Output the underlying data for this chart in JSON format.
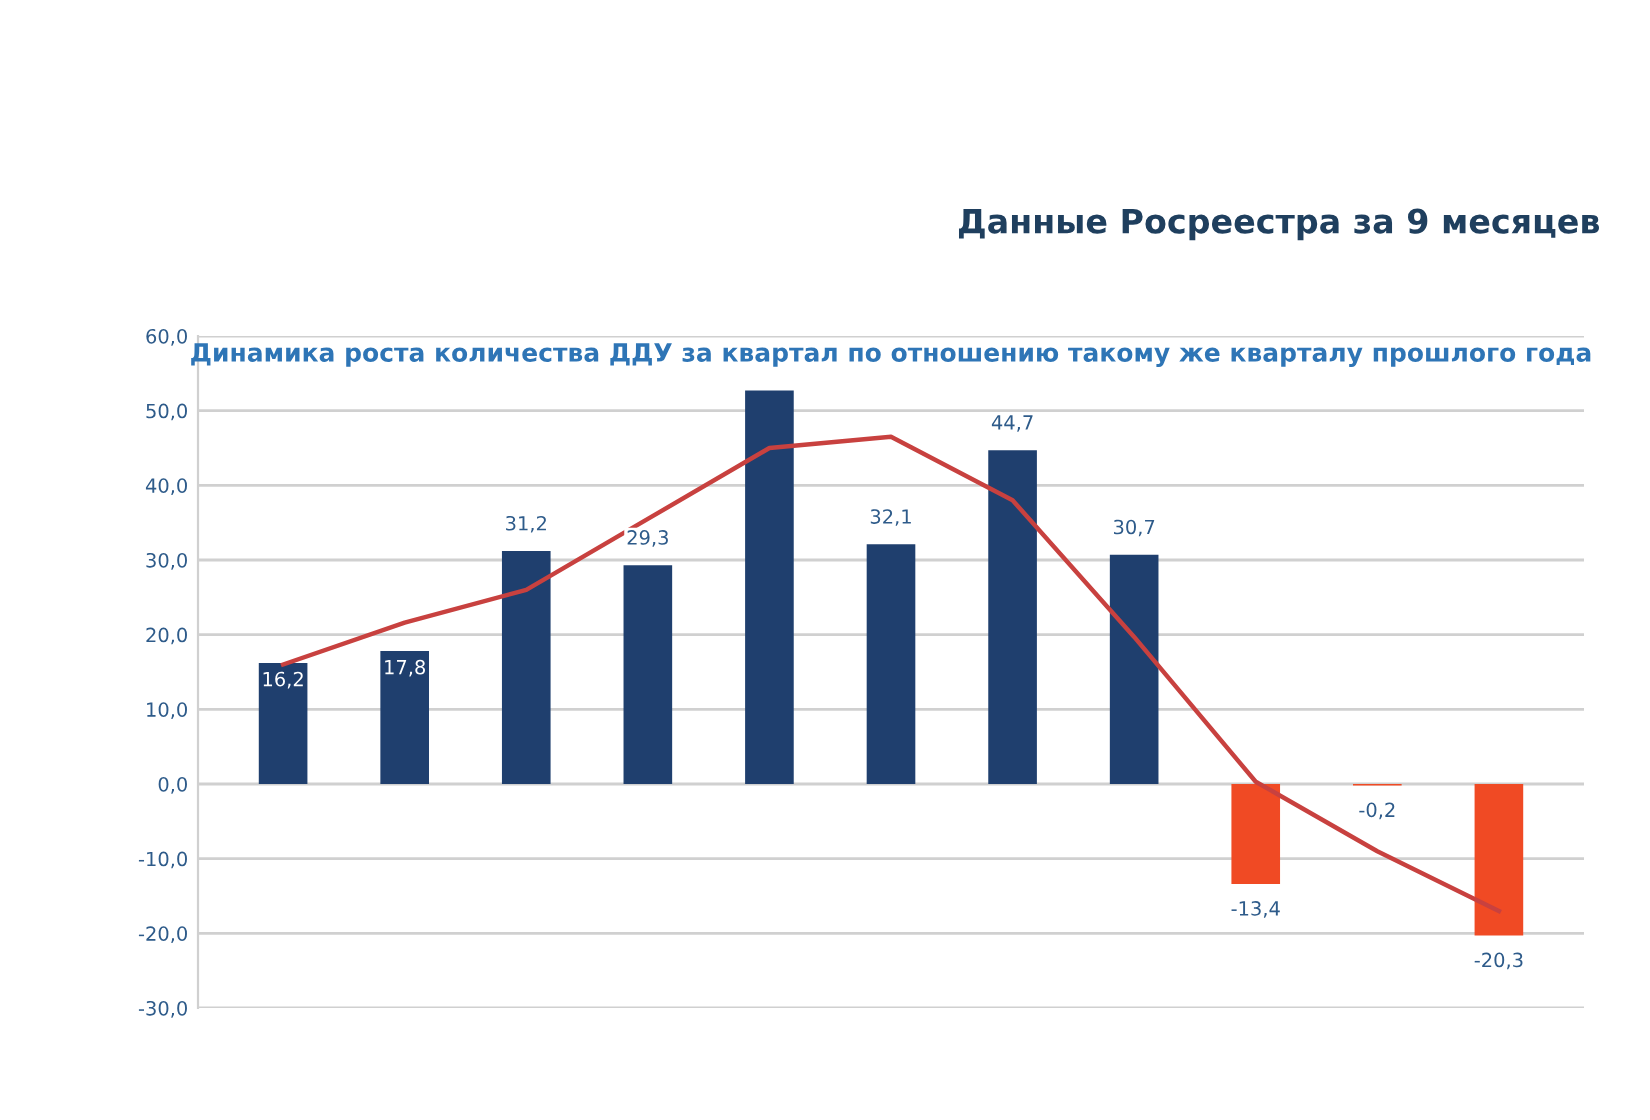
{
  "chart_data": {
    "type": "bar",
    "title": "Данные Росреестра за 9 месяцев",
    "subtitle": "Динамика роста количества ДДУ за квартал по отношению такому же кварталу прошлого года",
    "categories": [
      null,
      null,
      null,
      null,
      null,
      null,
      null,
      null,
      null,
      null,
      null
    ],
    "series": [
      {
        "type": "bar",
        "colors": [
          "#1f3f6e",
          "#1f3f6e",
          "#1f3f6e",
          "#1f3f6e",
          "#1f3f6e",
          "#1f3f6e",
          "#1f3f6e",
          "#1f3f6e",
          "#f04a24",
          "#f04a24",
          "#f04a24"
        ],
        "values": [
          16.2,
          17.8,
          31.2,
          29.3,
          52.7,
          32.1,
          44.7,
          30.7,
          -13.4,
          -0.2,
          -20.3
        ],
        "value_labels": [
          "16,2",
          "17,8",
          "31,2",
          "29,3",
          null,
          "32,1",
          "44,7",
          "30,7",
          "-13,4",
          "-0,2",
          "-20,3"
        ]
      },
      {
        "type": "line",
        "color": "#c8413f",
        "values": [
          16,
          21.6,
          26,
          35.5,
          45,
          46.5,
          38,
          19.7,
          0.3,
          -9,
          -17
        ]
      }
    ],
    "ylim": [
      -30,
      60
    ],
    "yticks": [
      {
        "value": -30,
        "label": "-30,0"
      },
      {
        "value": -20,
        "label": "-20,0"
      },
      {
        "value": -10,
        "label": "-10,0"
      },
      {
        "value": 0,
        "label": "0,0"
      },
      {
        "value": 10,
        "label": "10,0"
      },
      {
        "value": 20,
        "label": "20,0"
      },
      {
        "value": 30,
        "label": "30,0"
      },
      {
        "value": 40,
        "label": "40,0"
      },
      {
        "value": 50,
        "label": "50,0"
      },
      {
        "value": 60,
        "label": "60,0"
      }
    ],
    "grid": "y",
    "tick_labels": "y",
    "legend": false
  }
}
